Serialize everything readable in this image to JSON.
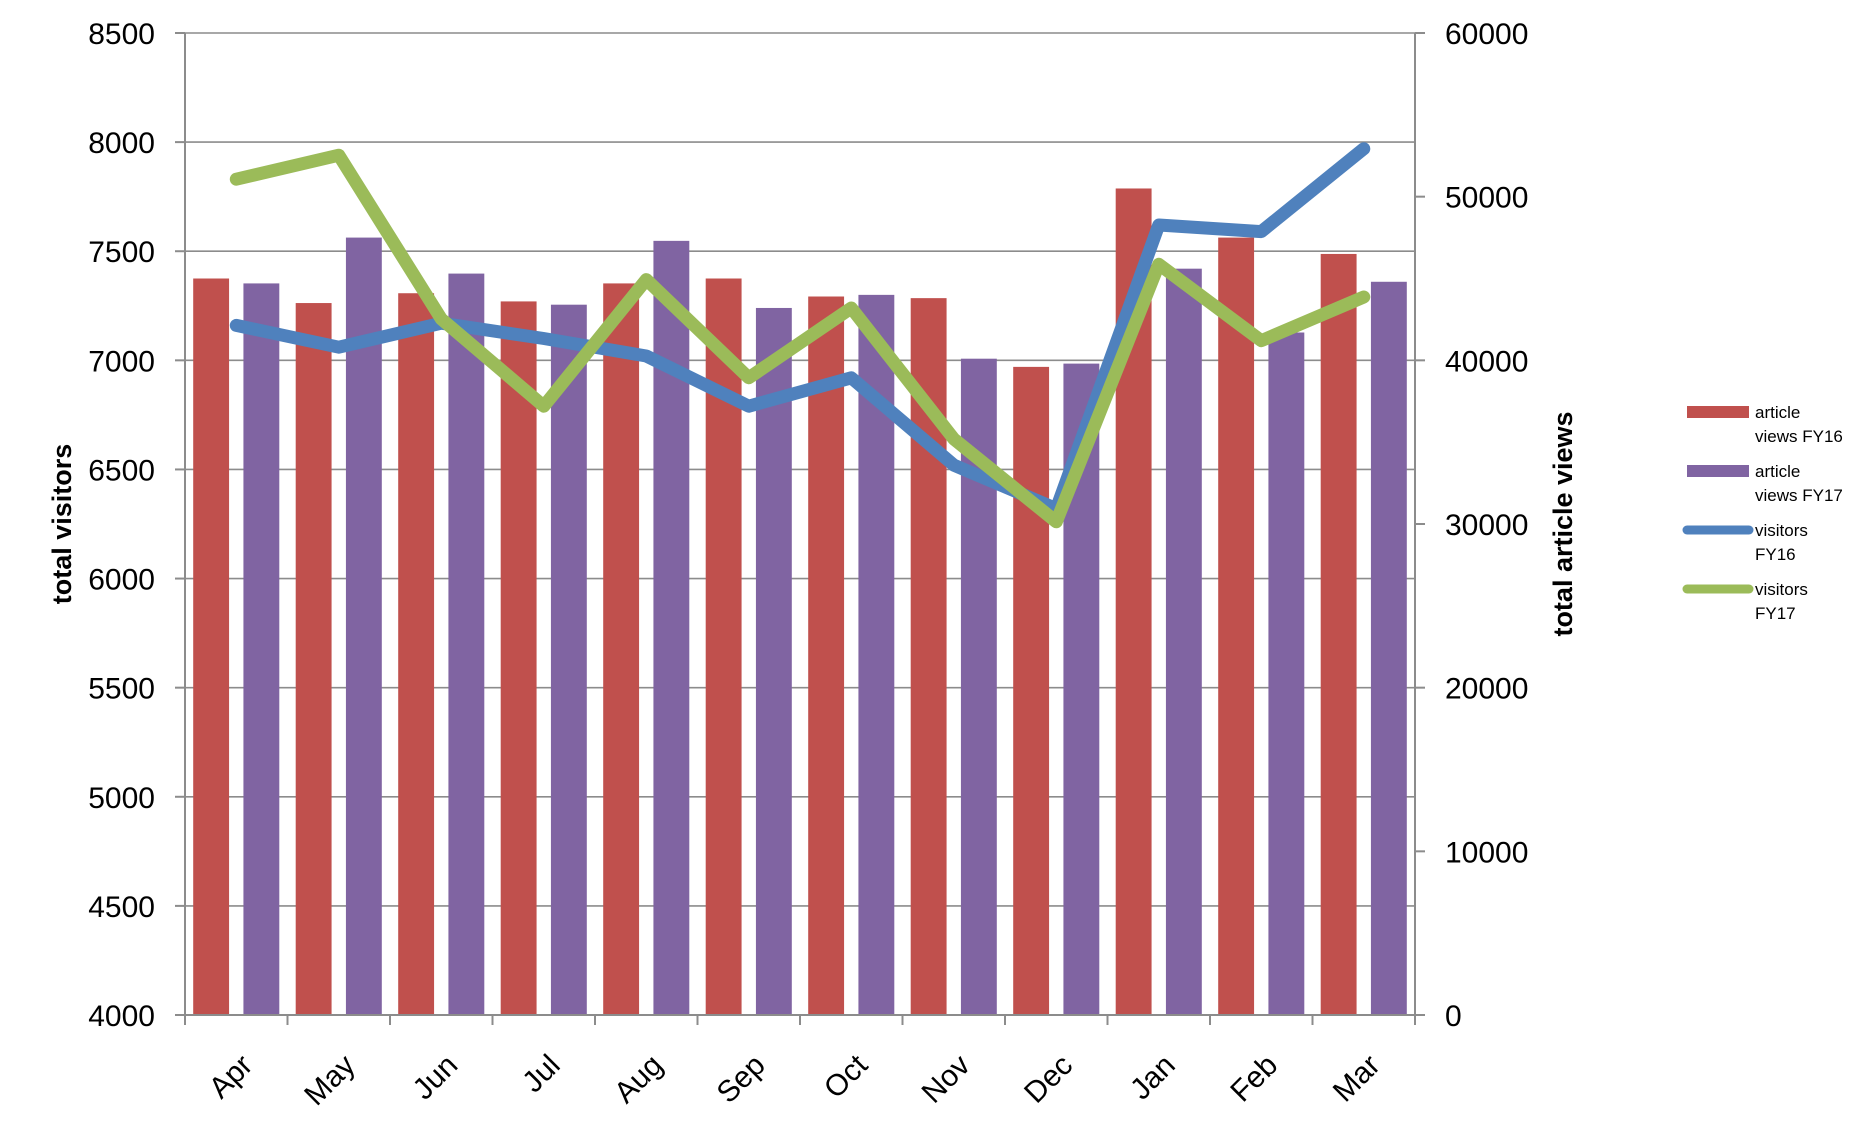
{
  "chart_data": {
    "type": "bar",
    "title": "",
    "categories": [
      "Apr",
      "May",
      "Jun",
      "Jul",
      "Aug",
      "Sep",
      "Oct",
      "Nov",
      "Dec",
      "Jan",
      "Feb",
      "Mar"
    ],
    "y_left": {
      "label": "total visitors",
      "ylim": [
        4000,
        8500
      ],
      "ticks": [
        "4000",
        "4500",
        "5000",
        "5500",
        "6000",
        "6500",
        "7000",
        "7500",
        "8000",
        "8500"
      ],
      "tick_values": [
        4000,
        4500,
        5000,
        5500,
        6000,
        6500,
        7000,
        7500,
        8000,
        8500
      ]
    },
    "y_right": {
      "label": "total article views",
      "ylim": [
        0,
        60000
      ],
      "ticks": [
        "0",
        "10000",
        "20000",
        "30000",
        "40000",
        "50000",
        "60000"
      ],
      "tick_values": [
        0,
        10000,
        20000,
        30000,
        40000,
        50000,
        60000
      ]
    },
    "grid": true,
    "legend_position": "right",
    "series": [
      {
        "name": "article views FY16",
        "legend_lines": [
          "article",
          "views FY16"
        ],
        "kind": "bar",
        "axis": "right",
        "color": "#c0504d",
        "values": [
          45000,
          43500,
          44100,
          43600,
          44700,
          45000,
          43900,
          43800,
          39600,
          50500,
          47500,
          46500
        ]
      },
      {
        "name": "article views FY17",
        "legend_lines": [
          "article",
          "views FY17"
        ],
        "kind": "bar",
        "axis": "right",
        "color": "#8064a2",
        "values": [
          44700,
          47500,
          45300,
          43400,
          47300,
          43200,
          44000,
          40100,
          39800,
          45600,
          41700,
          44800
        ]
      },
      {
        "name": "visitors FY16",
        "legend_lines": [
          "visitors",
          "FY16"
        ],
        "kind": "line",
        "axis": "left",
        "color": "#4f81bd",
        "values": [
          7160,
          7060,
          7170,
          7100,
          7020,
          6790,
          6920,
          6520,
          6320,
          7620,
          7590,
          7970
        ]
      },
      {
        "name": "visitors FY17",
        "legend_lines": [
          "visitors",
          "FY17"
        ],
        "kind": "line",
        "axis": "left",
        "color": "#9bbb59",
        "values": [
          7830,
          7940,
          7190,
          6790,
          7370,
          6920,
          7240,
          6640,
          6260,
          7440,
          7090,
          7290
        ]
      }
    ]
  }
}
